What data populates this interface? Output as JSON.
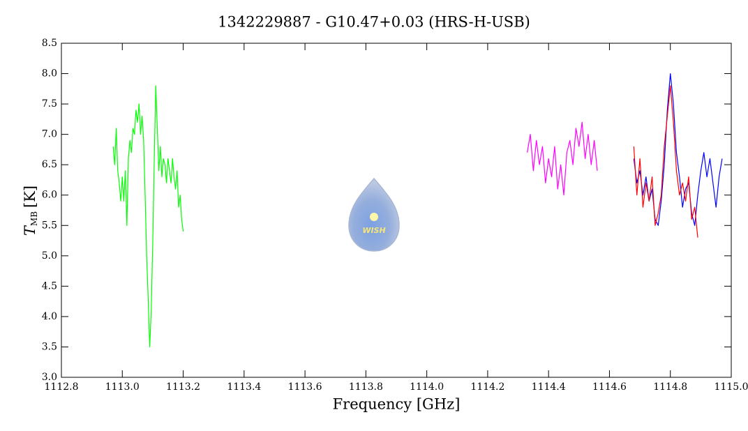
{
  "chart_data": {
    "type": "line",
    "title": "1342229887 - G10.47+0.03 (HRS-H-USB)",
    "xlabel": "Frequency [GHz]",
    "ylabel": "T",
    "ylabel_subscript": "MB",
    "ylabel_unit": "[K]",
    "logo_text": "WISH",
    "xlim": [
      1112.8,
      1115.0
    ],
    "ylim": [
      3.0,
      8.5
    ],
    "xticks": [
      1112.8,
      {
        "value": 1113,
        "label": "1113.0"
      },
      1113.2,
      1113.4,
      1113.6,
      1113.8,
      {
        "value": 1114,
        "label": "1114.0"
      },
      1114.2,
      1114.4,
      1114.6,
      1114.8,
      {
        "value": 1115,
        "label": "1115.0"
      }
    ],
    "yticks": [
      {
        "value": 3,
        "label": "3.0"
      },
      3.5,
      {
        "value": 4,
        "label": "4.0"
      },
      4.5,
      {
        "value": 5,
        "label": "5.0"
      },
      5.5,
      {
        "value": 6,
        "label": "6.0"
      },
      6.5,
      {
        "value": 7,
        "label": "7.0"
      },
      7.5,
      {
        "value": 8,
        "label": "8.0"
      },
      8.5
    ],
    "series": [
      {
        "color": "#00ff00",
        "x": [
          1112.97,
          1112.975,
          1112.98,
          1112.985,
          1112.99,
          1112.995,
          1113.0,
          1113.005,
          1113.01,
          1113.015,
          1113.02,
          1113.025,
          1113.03,
          1113.035,
          1113.04,
          1113.045,
          1113.05,
          1113.055,
          1113.06,
          1113.065,
          1113.07,
          1113.075,
          1113.08,
          1113.085,
          1113.09,
          1113.095,
          1113.1,
          1113.105,
          1113.11,
          1113.115,
          1113.12,
          1113.125,
          1113.13,
          1113.135,
          1113.14,
          1113.145,
          1113.15,
          1113.155,
          1113.16,
          1113.165,
          1113.17,
          1113.175,
          1113.18,
          1113.185,
          1113.19,
          1113.195,
          1113.2
        ],
        "values": [
          6.8,
          6.5,
          7.1,
          6.4,
          6.2,
          5.9,
          6.3,
          5.9,
          6.4,
          5.5,
          6.6,
          6.9,
          6.7,
          7.1,
          7.0,
          7.4,
          7.2,
          7.5,
          7.0,
          7.3,
          6.9,
          6.0,
          5.0,
          4.3,
          3.5,
          4.1,
          5.2,
          6.6,
          7.8,
          7.1,
          6.4,
          6.8,
          6.3,
          6.6,
          6.5,
          6.2,
          6.6,
          6.4,
          6.2,
          6.6,
          6.3,
          6.1,
          6.4,
          5.8,
          6.0,
          5.6,
          5.4
        ]
      },
      {
        "color": "#ff00ff",
        "x": [
          1114.33,
          1114.34,
          1114.35,
          1114.36,
          1114.37,
          1114.38,
          1114.39,
          1114.4,
          1114.41,
          1114.42,
          1114.43,
          1114.44,
          1114.45,
          1114.46,
          1114.47,
          1114.48,
          1114.49,
          1114.5,
          1114.51,
          1114.52,
          1114.53,
          1114.54,
          1114.55,
          1114.56
        ],
        "values": [
          6.7,
          7.0,
          6.4,
          6.9,
          6.5,
          6.8,
          6.2,
          6.6,
          6.3,
          6.8,
          6.1,
          6.5,
          6.0,
          6.7,
          6.9,
          6.5,
          7.1,
          6.8,
          7.2,
          6.6,
          7.0,
          6.5,
          6.9,
          6.4
        ]
      },
      {
        "color": "#0000ff",
        "x": [
          1114.68,
          1114.69,
          1114.7,
          1114.71,
          1114.72,
          1114.73,
          1114.74,
          1114.75,
          1114.76,
          1114.77,
          1114.78,
          1114.79,
          1114.8,
          1114.81,
          1114.82,
          1114.83,
          1114.84,
          1114.85,
          1114.86,
          1114.87,
          1114.88,
          1114.89,
          1114.9,
          1114.91,
          1114.92,
          1114.93,
          1114.94,
          1114.95,
          1114.96,
          1114.97
        ],
        "values": [
          6.6,
          6.2,
          6.4,
          6.0,
          6.3,
          5.9,
          6.1,
          5.6,
          5.5,
          5.9,
          6.5,
          7.4,
          8.0,
          7.5,
          6.7,
          6.3,
          5.8,
          6.1,
          6.2,
          5.7,
          5.5,
          6.0,
          6.4,
          6.7,
          6.3,
          6.6,
          6.2,
          5.8,
          6.3,
          6.6
        ]
      },
      {
        "color": "#ff0000",
        "x": [
          1114.68,
          1114.69,
          1114.7,
          1114.71,
          1114.72,
          1114.73,
          1114.74,
          1114.75,
          1114.76,
          1114.77,
          1114.78,
          1114.79,
          1114.8,
          1114.81,
          1114.82,
          1114.83,
          1114.84,
          1114.85,
          1114.86,
          1114.87,
          1114.88,
          1114.89
        ],
        "values": [
          6.8,
          6.0,
          6.6,
          5.8,
          6.2,
          5.9,
          6.3,
          5.5,
          5.7,
          6.0,
          6.8,
          7.3,
          7.8,
          7.2,
          6.4,
          6.0,
          6.2,
          5.9,
          6.3,
          5.6,
          5.8,
          5.3
        ]
      }
    ]
  }
}
